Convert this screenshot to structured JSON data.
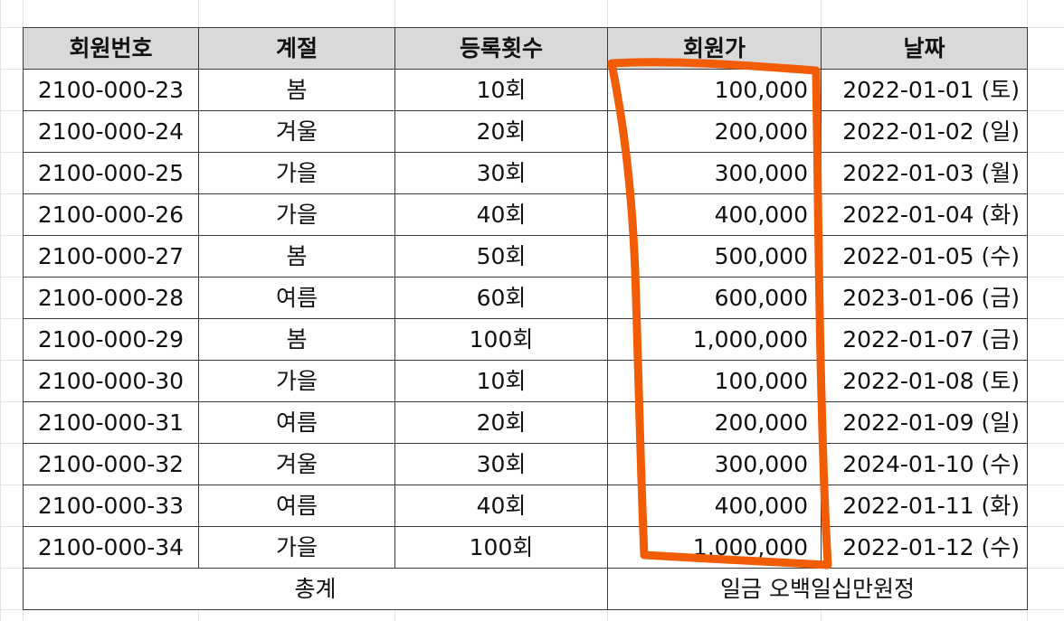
{
  "table": {
    "headers": [
      "회원번호",
      "계절",
      "등록횟수",
      "회원가",
      "날짜"
    ],
    "rows": [
      {
        "id": "2100-000-23",
        "season": "봄",
        "count": "10회",
        "price": "100,000",
        "date": "2022-01-01 (토)"
      },
      {
        "id": "2100-000-24",
        "season": "겨울",
        "count": "20회",
        "price": "200,000",
        "date": "2022-01-02 (일)"
      },
      {
        "id": "2100-000-25",
        "season": "가을",
        "count": "30회",
        "price": "300,000",
        "date": "2022-01-03 (월)"
      },
      {
        "id": "2100-000-26",
        "season": "가을",
        "count": "40회",
        "price": "400,000",
        "date": "2022-01-04 (화)"
      },
      {
        "id": "2100-000-27",
        "season": "봄",
        "count": "50회",
        "price": "500,000",
        "date": "2022-01-05 (수)"
      },
      {
        "id": "2100-000-28",
        "season": "여름",
        "count": "60회",
        "price": "600,000",
        "date": "2023-01-06 (금)"
      },
      {
        "id": "2100-000-29",
        "season": "봄",
        "count": "100회",
        "price": "1,000,000",
        "date": "2022-01-07 (금)"
      },
      {
        "id": "2100-000-30",
        "season": "가을",
        "count": "10회",
        "price": "100,000",
        "date": "2022-01-08 (토)"
      },
      {
        "id": "2100-000-31",
        "season": "여름",
        "count": "20회",
        "price": "200,000",
        "date": "2022-01-09 (일)"
      },
      {
        "id": "2100-000-32",
        "season": "겨울",
        "count": "30회",
        "price": "300,000",
        "date": "2024-01-10 (수)"
      },
      {
        "id": "2100-000-33",
        "season": "여름",
        "count": "40회",
        "price": "400,000",
        "date": "2022-01-11 (화)"
      },
      {
        "id": "2100-000-34",
        "season": "가을",
        "count": "100회",
        "price": "1,000,000",
        "date": "2022-01-12 (수)"
      }
    ],
    "total_label": "총계",
    "total_value": "일금 오백일십만원정"
  },
  "colors": {
    "header_fill": "#d9d9d9",
    "border": "#3a3a3a",
    "gridline": "#e3e3e3",
    "annotation": "#f25c05"
  }
}
